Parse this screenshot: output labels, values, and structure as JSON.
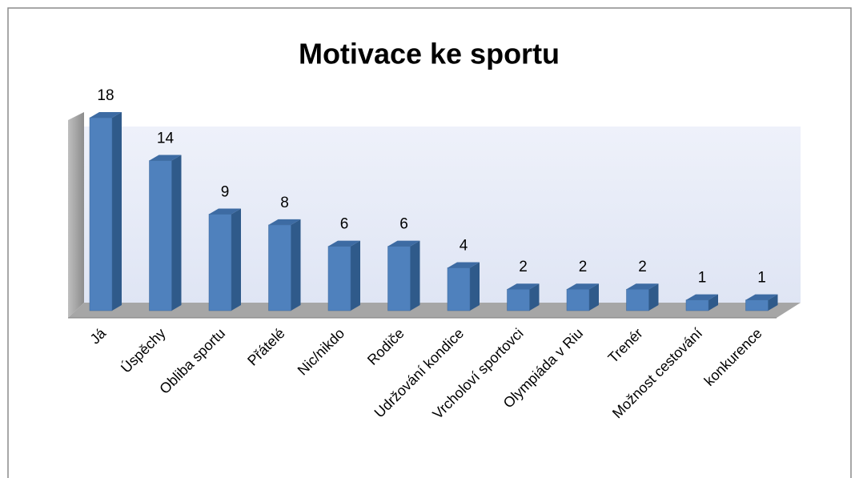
{
  "chart_data": {
    "type": "bar",
    "title": "Motivace ke sportu",
    "categories": [
      "Já",
      "Úspěchy",
      "Obliba sportu",
      "Přátelé",
      "Nic/nikdo",
      "Rodiče",
      "Udržování kondice",
      "Vrcholoví sportovci",
      "Olympiáda v Riu",
      "Trenér",
      "Možnost cestování",
      "konkurence"
    ],
    "values": [
      18,
      14,
      9,
      8,
      6,
      6,
      4,
      2,
      2,
      2,
      1,
      1
    ],
    "color": "#4f81bd"
  }
}
